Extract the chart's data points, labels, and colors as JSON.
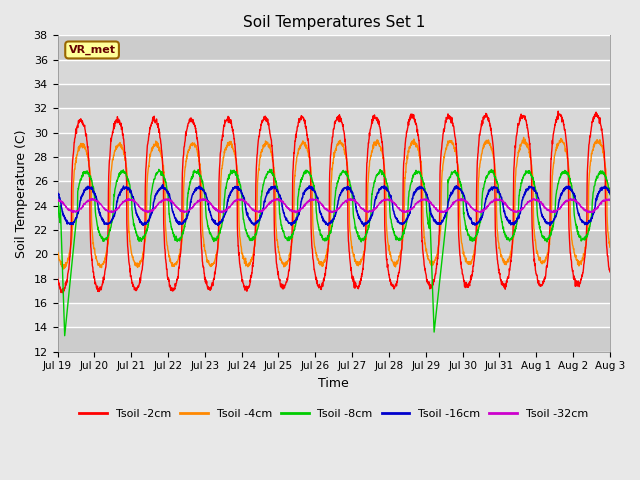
{
  "title": "Soil Temperatures Set 1",
  "xlabel": "Time",
  "ylabel": "Soil Temperature (C)",
  "ylim": [
    12,
    38
  ],
  "xlim": [
    0,
    15
  ],
  "bg_color": "#e8e8e8",
  "annotation_label": "VR_met",
  "x_tick_labels": [
    "Jul 19",
    "Jul 20",
    "Jul 21",
    "Jul 22",
    "Jul 23",
    "Jul 24",
    "Jul 25",
    "Jul 26",
    "Jul 27",
    "Jul 28",
    "Jul 29",
    "Jul 30",
    "Jul 31",
    "Aug 1",
    "Aug 2",
    "Aug 3"
  ],
  "legend_entries": [
    "Tsoil -2cm",
    "Tsoil -4cm",
    "Tsoil -8cm",
    "Tsoil -16cm",
    "Tsoil -32cm"
  ],
  "line_colors": [
    "#ff0000",
    "#ff8800",
    "#00cc00",
    "#0000cc",
    "#cc00cc"
  ],
  "n_days": 15,
  "ppd": 144,
  "base_temp": 24.0,
  "amp2": 7.0,
  "amp4": 5.0,
  "amp8": 2.8,
  "amp16": 1.5,
  "amp32": 0.5,
  "phase2": 0.38,
  "phase4": 0.42,
  "phase8": 0.52,
  "phase16": 0.6,
  "phase32": 0.7,
  "spike1_day": 0.08,
  "spike1_end_day": 0.55,
  "spike1_min": 13.3,
  "spike2_day": 10.1,
  "spike2_end_day": 10.6,
  "spike2_min": 13.6,
  "sharpness": 2.5
}
